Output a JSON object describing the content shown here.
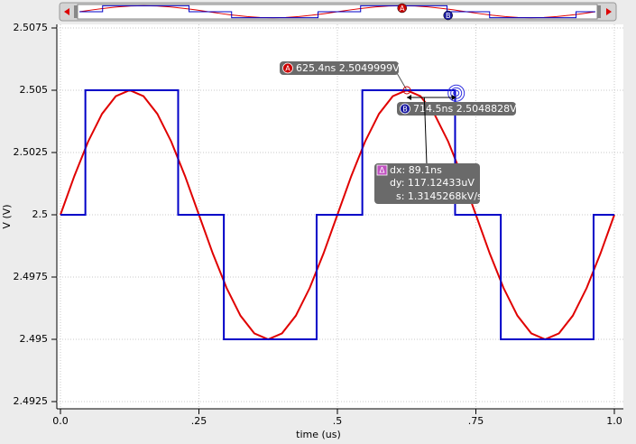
{
  "chart_data": {
    "type": "line",
    "xlabel": "time (us)",
    "ylabel": "V (V)",
    "xlim": [
      0,
      1.0
    ],
    "ylim": [
      2.4925,
      2.5075
    ],
    "xticks": [
      {
        "value": 0,
        "label": "0.0"
      },
      {
        "value": 0.25,
        "label": ".25"
      },
      {
        "value": 0.5,
        "label": ".5"
      },
      {
        "value": 0.75,
        "label": ".75"
      },
      {
        "value": 1.0,
        "label": "1.0"
      }
    ],
    "yticks": [
      2.4925,
      2.495,
      2.4975,
      2.5,
      2.5025,
      2.505,
      2.5075
    ],
    "grid": true,
    "series": [
      {
        "color": "#e00000",
        "x": [
          0,
          0.025,
          0.05,
          0.075,
          0.1,
          0.125,
          0.15,
          0.175,
          0.2,
          0.225,
          0.25,
          0.275,
          0.3,
          0.325,
          0.35,
          0.375,
          0.4,
          0.425,
          0.45,
          0.475,
          0.5,
          0.525,
          0.55,
          0.575,
          0.6,
          0.625,
          0.65,
          0.675,
          0.7,
          0.725,
          0.75,
          0.775,
          0.8,
          0.825,
          0.85,
          0.875,
          0.9,
          0.925,
          0.95,
          0.975,
          1.0
        ],
        "values": [
          2.5,
          2.50155,
          2.50294,
          2.50405,
          2.50476,
          2.505,
          2.50476,
          2.50405,
          2.50294,
          2.50155,
          2.5,
          2.49845,
          2.49706,
          2.49595,
          2.49524,
          2.495,
          2.49524,
          2.49595,
          2.49706,
          2.49845,
          2.5,
          2.50155,
          2.50294,
          2.50405,
          2.50476,
          2.505,
          2.50476,
          2.50405,
          2.50294,
          2.50155,
          2.5,
          2.49845,
          2.49706,
          2.49595,
          2.49524,
          2.495,
          2.49524,
          2.49595,
          2.49706,
          2.49845,
          2.5
        ]
      },
      {
        "color": "#0000c8",
        "x": [
          0,
          0.045,
          0.045,
          0.2125,
          0.2125,
          0.295,
          0.295,
          0.4625,
          0.4625,
          0.545,
          0.545,
          0.7125,
          0.7125,
          0.795,
          0.795,
          0.9625,
          0.9625,
          1.0
        ],
        "values": [
          2.5,
          2.5,
          2.505,
          2.505,
          2.5,
          2.5,
          2.495,
          2.495,
          2.5,
          2.5,
          2.505,
          2.505,
          2.5,
          2.5,
          2.495,
          2.495,
          2.5,
          2.5
        ]
      }
    ],
    "markers": [
      {
        "label": "A",
        "x": 0.6254,
        "y": 2.5049999,
        "text": "625.4ns 2.5049999V"
      },
      {
        "label": "B",
        "x": 0.7145,
        "y": 2.5048828,
        "text": "714.5ns 2.5048828V"
      }
    ],
    "delta": {
      "label": "Δ",
      "dx": "dx: 89.1ns",
      "dy": "dy: 117.12433uV",
      "s": "s: 1.3145268kV/s"
    }
  }
}
